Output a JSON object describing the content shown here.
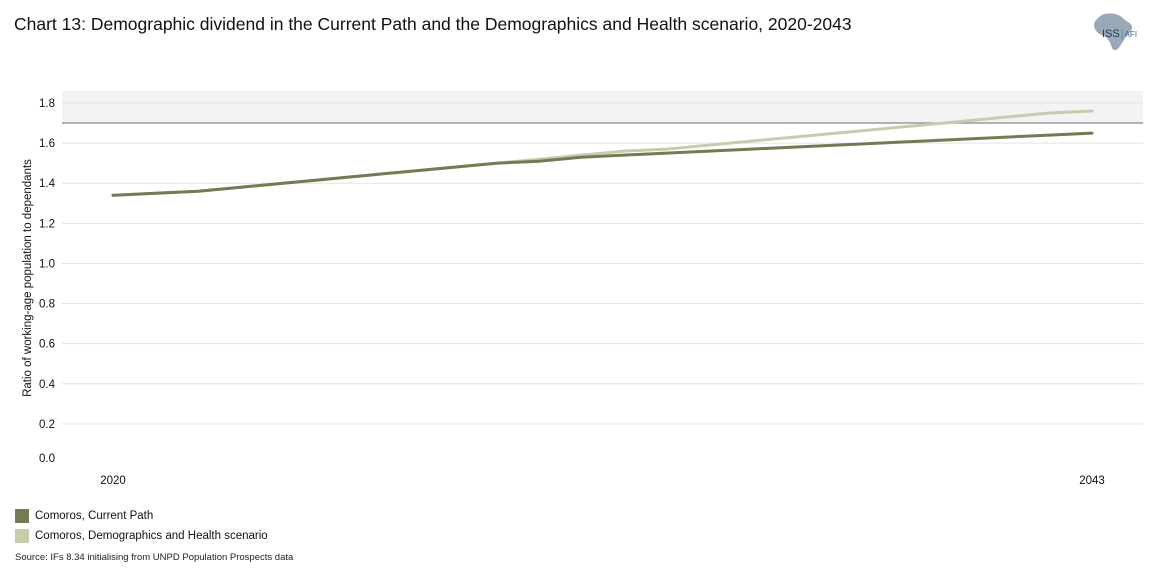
{
  "header": {
    "title": "Chart 13: Demographic dividend in the Current Path and the Demographics and Health scenario, 2020-2043"
  },
  "logo": {
    "text_main": "ISS",
    "text_sub": "AFI",
    "color": "#9aa8b8"
  },
  "chart_data": {
    "type": "line",
    "title": "Chart 13: Demographic dividend in the Current Path and the Demographics and Health scenario, 2020-2043",
    "xlabel": "",
    "ylabel": "Ratio of working-age population to dependants",
    "x": [
      2020,
      2021,
      2022,
      2023,
      2024,
      2025,
      2026,
      2027,
      2028,
      2029,
      2030,
      2031,
      2032,
      2033,
      2034,
      2035,
      2036,
      2037,
      2038,
      2039,
      2040,
      2041,
      2042,
      2043
    ],
    "x_tick_labels": [
      "2020",
      "2043"
    ],
    "ylim": [
      0,
      1.8
    ],
    "y_ticks": [
      "0.0",
      "0.2",
      "0.4",
      "0.6",
      "0.8",
      "1.0",
      "1.2",
      "1.4",
      "1.6",
      "1.8"
    ],
    "highlight_band": [
      1.7,
      1.8
    ],
    "reference_line": 1.7,
    "grid": true,
    "legend_position": "bottom-left",
    "series": [
      {
        "name": "Comoros, Current Path",
        "color": "#737b54",
        "values": [
          1.34,
          1.35,
          1.36,
          1.38,
          1.4,
          1.42,
          1.44,
          1.46,
          1.48,
          1.5,
          1.51,
          1.53,
          1.54,
          1.55,
          1.56,
          1.57,
          1.58,
          1.59,
          1.6,
          1.61,
          1.62,
          1.63,
          1.64,
          1.65
        ]
      },
      {
        "name": "Comoros, Demographics and Health scenario",
        "color": "#c8ccae",
        "values": [
          1.34,
          1.35,
          1.36,
          1.38,
          1.4,
          1.42,
          1.44,
          1.46,
          1.48,
          1.5,
          1.52,
          1.54,
          1.56,
          1.57,
          1.59,
          1.61,
          1.63,
          1.65,
          1.67,
          1.69,
          1.71,
          1.73,
          1.75,
          1.76
        ]
      }
    ]
  },
  "source": "Source: IFs 8.34 initialising from UNPD Population Prospects data"
}
